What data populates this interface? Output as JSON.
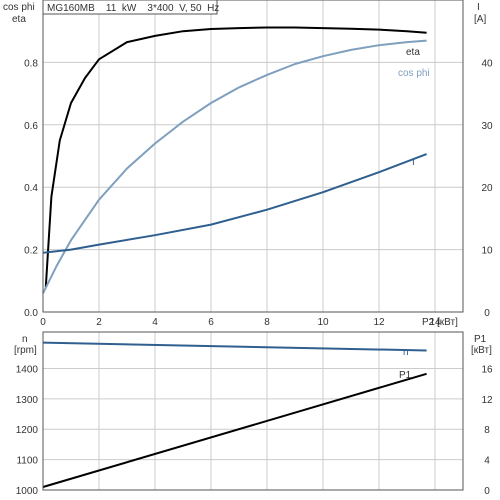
{
  "header": {
    "text": "MG160MB    11  kW    3*400  V, 50  Hz"
  },
  "chart_data": [
    {
      "type": "line",
      "panel": "top",
      "left_axis_labels": [
        "cos phi",
        "eta"
      ],
      "right_axis_labels": [
        "I",
        "[A]"
      ],
      "xlabel": "P2 [кВт]",
      "xlim": [
        0,
        15
      ],
      "xticks": [
        0,
        2,
        4,
        6,
        8,
        10,
        12,
        14
      ],
      "ylim": [
        0,
        1.0
      ],
      "yticks": [
        0.0,
        0.2,
        0.4,
        0.6,
        0.8
      ],
      "y2lim": [
        0,
        50
      ],
      "y2ticks": [
        0,
        10,
        20,
        30,
        40
      ],
      "grid": true,
      "series": [
        {
          "name": "eta",
          "axis": "left",
          "color": "#000000",
          "x": [
            0.1,
            0.3,
            0.6,
            1.0,
            1.5,
            2.0,
            3.0,
            4.0,
            5.0,
            6.0,
            7.0,
            8.0,
            9.0,
            10.0,
            11.0,
            12.0,
            13.0,
            13.7
          ],
          "y": [
            0.08,
            0.37,
            0.55,
            0.67,
            0.75,
            0.81,
            0.865,
            0.885,
            0.9,
            0.907,
            0.91,
            0.912,
            0.912,
            0.91,
            0.908,
            0.905,
            0.9,
            0.895
          ]
        },
        {
          "name": "cos phi",
          "axis": "left",
          "color": "#7f9fbf",
          "x": [
            0.0,
            0.5,
            1.0,
            2.0,
            3.0,
            4.0,
            5.0,
            6.0,
            7.0,
            8.0,
            9.0,
            10.0,
            11.0,
            12.0,
            13.0,
            13.7
          ],
          "y": [
            0.06,
            0.15,
            0.23,
            0.36,
            0.46,
            0.54,
            0.61,
            0.67,
            0.72,
            0.76,
            0.795,
            0.82,
            0.84,
            0.855,
            0.865,
            0.87
          ]
        },
        {
          "name": "I",
          "axis": "right",
          "color": "#2f5f8f",
          "x": [
            0.0,
            1.0,
            2.0,
            4.0,
            6.0,
            8.0,
            10.0,
            12.0,
            13.7
          ],
          "y": [
            9.5,
            10.0,
            10.8,
            12.3,
            14.0,
            16.4,
            19.2,
            22.4,
            25.3
          ]
        }
      ]
    },
    {
      "type": "line",
      "panel": "bottom",
      "left_axis_labels": [
        "n",
        "[rpm]"
      ],
      "right_axis_labels": [
        "P1",
        "[кВт]"
      ],
      "xlim": [
        0,
        15
      ],
      "ylim": [
        1000,
        1520
      ],
      "yticks": [
        1000,
        1100,
        1200,
        1300,
        1400
      ],
      "y2lim": [
        0,
        20.8
      ],
      "y2ticks": [
        0,
        4,
        8,
        12,
        16
      ],
      "grid": true,
      "series": [
        {
          "name": "n",
          "axis": "left",
          "color": "#2f5f8f",
          "x": [
            0.0,
            13.7
          ],
          "y": [
            1485,
            1459
          ]
        },
        {
          "name": "P1",
          "axis": "right",
          "color": "#000000",
          "x": [
            0.0,
            13.7
          ],
          "y": [
            0.4,
            15.3
          ]
        }
      ]
    }
  ]
}
